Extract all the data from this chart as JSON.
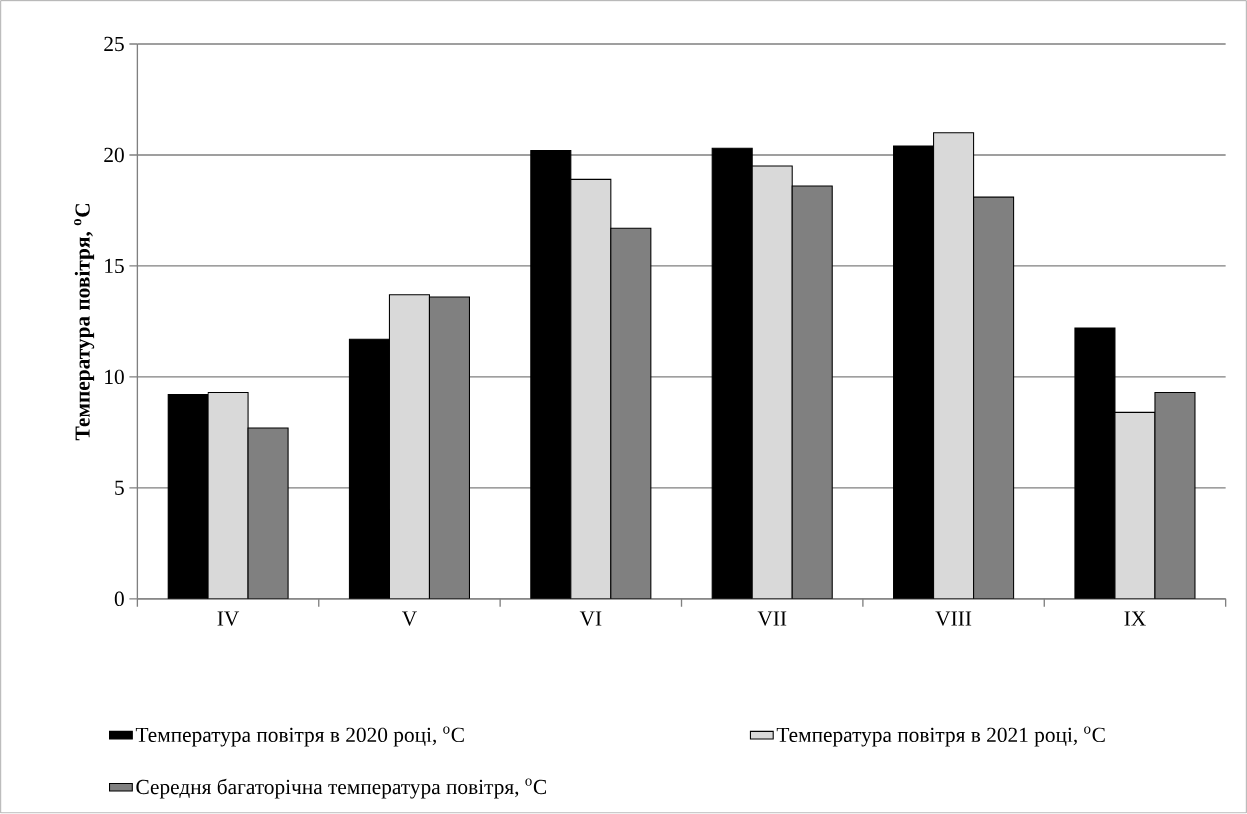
{
  "chart_data": {
    "type": "bar",
    "ylabel": "Температура повітря, $^{o}$C",
    "categories": [
      "IV",
      "V",
      "VI",
      "VII",
      "VIII",
      "IX"
    ],
    "series": [
      {
        "name": "Температура повітря в 2020 році, $^{o}$C",
        "color": "#000000",
        "values": [
          9.2,
          11.7,
          20.2,
          20.3,
          20.4,
          12.2
        ]
      },
      {
        "name": "Температура повітря в 2021 році, $^{o}$C",
        "color": "#d9d9d9",
        "values": [
          9.3,
          13.7,
          18.9,
          19.5,
          21.0,
          8.4
        ]
      },
      {
        "name": "Середня багаторічна температура повітря, $^{o}$C",
        "color": "#808080",
        "values": [
          7.7,
          13.6,
          16.7,
          18.6,
          18.1,
          9.3
        ]
      }
    ],
    "ylim": [
      0,
      25
    ],
    "yticks": [
      0,
      5,
      10,
      15,
      20,
      25
    ],
    "grid": "y",
    "legend": "bottom"
  }
}
